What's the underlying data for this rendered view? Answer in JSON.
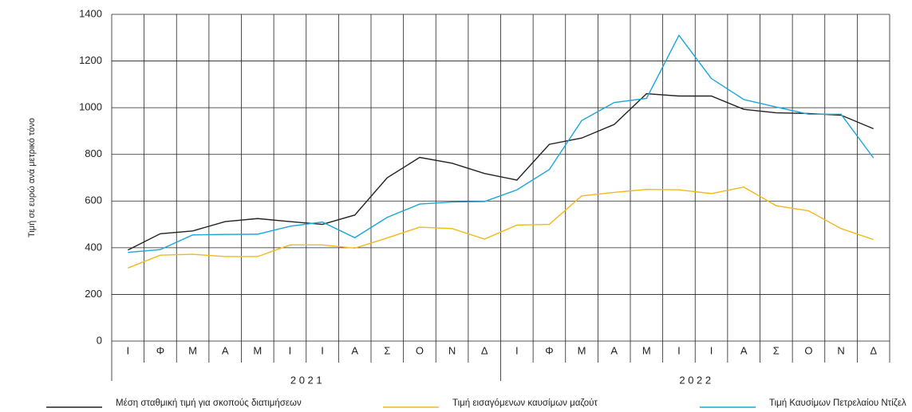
{
  "chart_data": {
    "type": "line",
    "y_label": "Τιμή σε ευρώ ανά μετρικό τόνο",
    "categories": [
      "Ι",
      "Φ",
      "Μ",
      "Α",
      "Μ",
      "Ι",
      "Ι",
      "Α",
      "Σ",
      "Ο",
      "Ν",
      "Δ",
      "Ι",
      "Φ",
      "Μ",
      "Α",
      "Μ",
      "Ι",
      "Ι",
      "Α",
      "Σ",
      "Ο",
      "Ν",
      "Δ"
    ],
    "years": [
      "2 0 2 1",
      "2 0 2 2"
    ],
    "series": [
      {
        "name": "Μέση σταθμική τιμή για σκοπούς διατιμήσεων",
        "color": "#222222",
        "values": [
          390,
          460,
          472,
          512,
          525,
          512,
          500,
          540,
          700,
          787,
          762,
          718,
          690,
          843,
          870,
          928,
          1060,
          1050,
          1050,
          993,
          978,
          975,
          968,
          910
        ]
      },
      {
        "name": "Τιμή εισαγόμενων καυσίμων μαζούτ",
        "color": "#f2b81c",
        "values": [
          313,
          368,
          372,
          362,
          362,
          412,
          412,
          398,
          442,
          488,
          482,
          437,
          497,
          500,
          622,
          637,
          650,
          648,
          632,
          660,
          580,
          558,
          482,
          435
        ]
      },
      {
        "name": "Τιμή Καυσίμων Πετρελαίου Ντίζελ",
        "color": "#1aa6d9",
        "values": [
          380,
          392,
          455,
          457,
          458,
          492,
          510,
          443,
          530,
          587,
          596,
          598,
          648,
          735,
          945,
          1022,
          1040,
          1310,
          1125,
          1035,
          1003,
          972,
          972,
          785
        ]
      }
    ],
    "ylim": [
      0,
      1400
    ],
    "yticks": [
      0,
      200,
      400,
      600,
      800,
      1000,
      1200,
      1400
    ],
    "grid": true
  }
}
